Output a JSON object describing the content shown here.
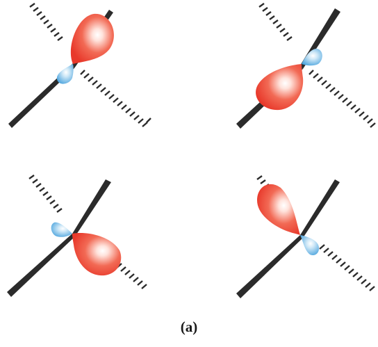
{
  "figure": {
    "caption": "(a)",
    "colors": {
      "bond": "#2b2b2b",
      "large_lobe": "#e83a2e",
      "large_lobe_highlight": "#ffffff",
      "small_lobe": "#4aa3dc",
      "small_lobe_highlight": "#ffffff"
    },
    "panels": [
      {
        "name": "orbital-panel-top-left"
      },
      {
        "name": "orbital-panel-top-right"
      },
      {
        "name": "orbital-panel-bottom-left"
      },
      {
        "name": "orbital-panel-bottom-right"
      }
    ]
  }
}
